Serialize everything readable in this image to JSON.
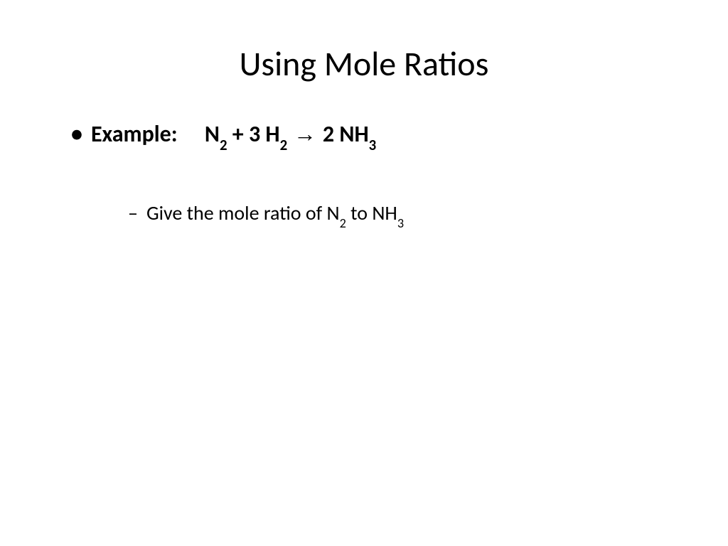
{
  "slide": {
    "title": "Using Mole Ratios",
    "title_fontsize": 48,
    "background_color": "#ffffff",
    "text_color": "#000000",
    "bullet_l1": {
      "marker": "•",
      "label": "Example:",
      "equation": {
        "prefix_spacer": "   ",
        "species1": "N",
        "species1_sub": "2",
        "plus": " + 3 H",
        "species2_sub": "2",
        "arrow": " → ",
        "product_coef": "2 NH",
        "product_sub": "3"
      },
      "fontsize": 32,
      "weight": "bold"
    },
    "bullet_l2": {
      "marker": "–",
      "text_part1": "Give the mole ratio of N",
      "sub1": "2",
      "text_part2": " to NH",
      "sub2": "3",
      "fontsize": 28,
      "weight": "normal"
    }
  }
}
